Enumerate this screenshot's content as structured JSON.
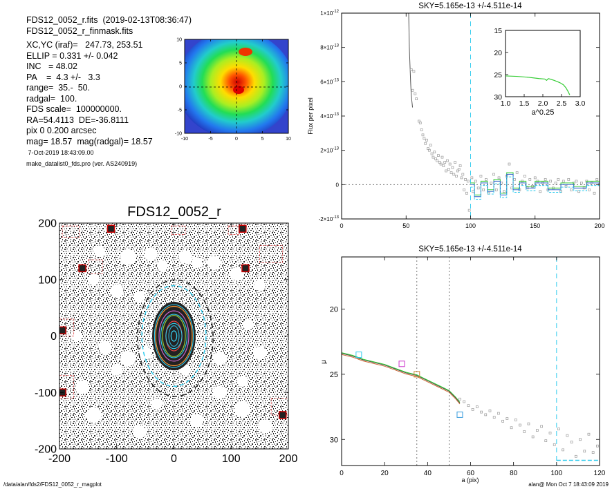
{
  "header": {
    "line1": "FDS12_0052_r.fits  (2019-02-13T08:36:47)",
    "line2": "FDS12_0052_r_finmask.fits",
    "xcyc": "XC,YC (iraf)=   247.73, 253.51",
    "ellip": "ELLIP = 0.331 +/- 0.042",
    "inc": "INC   = 48.02",
    "pa": "PA    =  4.3 +/-   3.3",
    "range": "range=  35.-  50.",
    "radgal": "radgal=  100.",
    "fds_scale": "FDS scale=  100000000.",
    "radec": "RA=54.4113  DE=-36.8111",
    "pix": "pix 0 0.200 arcsec",
    "mag": "mag= 18.57  mag(radgal)= 18.57",
    "date": " 7-Oct-2019 18:43:09.00",
    "program": "make_datalist0_fds.pro (ver. AS240919)"
  },
  "footer": {
    "path": "/data/alan/fds2/FDS12_0052_r_magplot",
    "stamp": "alan@  Mon Oct  7 18:43:09 2019"
  },
  "colors": {
    "axis": "#000000",
    "cyan": "#33ccee",
    "green": "#33cc33",
    "points": "#999999",
    "mask": "#dd3333"
  },
  "chart_data": [
    {
      "id": "thumbnail",
      "type": "heatmap",
      "xlim": [
        -10,
        10
      ],
      "ylim": [
        -10,
        10
      ],
      "xticks": [
        "-10",
        "-5",
        "0",
        "5",
        "10"
      ],
      "yticks": [
        "10",
        "5",
        "0",
        "-5",
        "-10"
      ],
      "colormap": "rainbow"
    },
    {
      "id": "image",
      "type": "scatter",
      "title": "FDS12_0052_r",
      "xlim": [
        -200,
        200
      ],
      "ylim": [
        -200,
        200
      ],
      "xticks": [
        "-200",
        "-100",
        "0",
        "100",
        "200"
      ],
      "yticks": [
        "200",
        "100",
        "0",
        "-100",
        "-200"
      ],
      "ellipse_semi_axes": [
        [
          14,
          22
        ],
        [
          23,
          38
        ],
        [
          34,
          55
        ],
        [
          56,
          88
        ]
      ]
    },
    {
      "id": "sky",
      "type": "scatter",
      "title": "SKY=5.165e-13 +/-4.511e-14",
      "xlabel": "",
      "ylabel": "Flux per pixel",
      "xlim": [
        0,
        200
      ],
      "ylim": [
        -2e-13,
        1e-12
      ],
      "xticks": [
        "0",
        "50",
        "100",
        "150",
        "200"
      ],
      "yticks": [
        {
          "v": 1e-12,
          "m": "1",
          "e": "-12"
        },
        {
          "v": 8e-13,
          "m": "8",
          "e": "-13"
        },
        {
          "v": 6e-13,
          "m": "6",
          "e": "-13"
        },
        {
          "v": 4e-13,
          "m": "4",
          "e": "-13"
        },
        {
          "v": 2e-13,
          "m": "2",
          "e": "-13"
        },
        {
          "v": 0,
          "m": "0",
          "e": ""
        },
        {
          "v": -2e-13,
          "m": "-2",
          "e": "-13"
        }
      ],
      "times": "×10",
      "limit_x": 100,
      "profile": [
        [
          52,
          1e-12
        ],
        [
          52.5,
          8e-13
        ],
        [
          53,
          7e-13
        ],
        [
          53.5,
          6e-13
        ],
        [
          54,
          5.2e-13
        ],
        [
          55,
          4.5e-13
        ]
      ],
      "points": [
        [
          54,
          6.7e-13
        ],
        [
          56,
          6.6e-13
        ],
        [
          55,
          5.5e-13
        ],
        [
          57,
          5.3e-13
        ],
        [
          58,
          5e-13
        ],
        [
          60,
          3.7e-13
        ],
        [
          61,
          3.6e-13
        ],
        [
          62,
          3.2e-13
        ],
        [
          63,
          2.9e-13
        ],
        [
          64,
          2.7e-13
        ],
        [
          65,
          2.4e-13
        ],
        [
          66,
          2.6e-13
        ],
        [
          67,
          2.1e-13
        ],
        [
          68,
          2e-13
        ],
        [
          69,
          2.3e-13
        ],
        [
          70,
          1.8e-13
        ],
        [
          71,
          1.6e-13
        ],
        [
          72,
          1.9e-13
        ],
        [
          73,
          1.5e-13
        ],
        [
          74,
          1.4e-13
        ],
        [
          75,
          1.7e-13
        ],
        [
          76,
          1.3e-13
        ],
        [
          77,
          1.2e-13
        ],
        [
          78,
          1.6e-13
        ],
        [
          79,
          1.1e-13
        ],
        [
          80,
          1.3e-13
        ],
        [
          81,
          8e-14
        ],
        [
          82,
          1.4e-13
        ],
        [
          83,
          9e-14
        ],
        [
          84,
          1.2e-13
        ],
        [
          85,
          7e-14
        ],
        [
          86,
          1e-13
        ],
        [
          87,
          6e-14
        ],
        [
          88,
          1.3e-13
        ],
        [
          89,
          5e-14
        ],
        [
          90,
          8e-14
        ],
        [
          91,
          9e-14
        ],
        [
          92,
          1.1e-13
        ],
        [
          93,
          4e-14
        ],
        [
          94,
          6e-14
        ],
        [
          95,
          -3e-14
        ],
        [
          96,
          3e-14
        ],
        [
          97,
          -5e-14
        ],
        [
          98,
          2e-14
        ],
        [
          99,
          -1.5e-13
        ],
        [
          101,
          4e-14
        ],
        [
          102,
          -4e-14
        ],
        [
          104,
          2e-14
        ],
        [
          106,
          -2e-14
        ],
        [
          108,
          5e-14
        ],
        [
          110,
          -3e-14
        ],
        [
          112,
          3e-14
        ],
        [
          114,
          -5e-14
        ],
        [
          116,
          1e-14
        ],
        [
          118,
          6e-14
        ],
        [
          120,
          -3e-14
        ],
        [
          122,
          4e-14
        ],
        [
          124,
          1e-14
        ],
        [
          126,
          -4e-14
        ],
        [
          128,
          5e-14
        ],
        [
          130,
          1.2e-13
        ],
        [
          132,
          -2e-14
        ],
        [
          134,
          3e-14
        ],
        [
          136,
          7e-14
        ],
        [
          138,
          -3e-14
        ],
        [
          140,
          2e-14
        ],
        [
          142,
          5e-14
        ],
        [
          144,
          -2e-14
        ],
        [
          146,
          3e-14
        ],
        [
          148,
          -1e-14
        ],
        [
          150,
          4e-14
        ],
        [
          152,
          2e-14
        ],
        [
          154,
          -4e-14
        ],
        [
          156,
          1e-14
        ],
        [
          158,
          3e-14
        ],
        [
          160,
          -3e-14
        ],
        [
          162,
          2e-14
        ],
        [
          164,
          -2e-14
        ],
        [
          166,
          1e-14
        ],
        [
          168,
          3e-14
        ],
        [
          170,
          -4e-14
        ],
        [
          172,
          2e-14
        ],
        [
          174,
          -1e-14
        ],
        [
          176,
          3e-14
        ],
        [
          178,
          -3e-14
        ],
        [
          180,
          1e-14
        ],
        [
          182,
          2e-14
        ],
        [
          184,
          -4e-14
        ],
        [
          186,
          1e-14
        ],
        [
          188,
          -2e-14
        ],
        [
          190,
          2e-14
        ],
        [
          192,
          -3e-14
        ],
        [
          194,
          1e-14
        ],
        [
          196,
          -5e-14
        ],
        [
          198,
          3e-14
        ],
        [
          200,
          0.0
        ]
      ],
      "steps": [
        [
          100,
          0
        ],
        [
          103,
          -7e-14
        ],
        [
          108,
          1e-14
        ],
        [
          113,
          -4e-14
        ],
        [
          118,
          2e-14
        ],
        [
          123,
          -6e-14
        ],
        [
          128,
          6e-14
        ],
        [
          133,
          -3e-14
        ],
        [
          138,
          1e-14
        ],
        [
          143,
          -2e-14
        ],
        [
          150,
          1e-14
        ],
        [
          160,
          -3e-14
        ],
        [
          170,
          0.0
        ],
        [
          180,
          -2e-14
        ],
        [
          190,
          1e-14
        ],
        [
          200,
          0.0
        ]
      ],
      "inset": {
        "xlabel": "a^0.25",
        "xlim": [
          1.0,
          3.0
        ],
        "ylim": [
          15,
          30
        ],
        "xticks": [
          "1.0",
          "1.5",
          "2.0",
          "2.5",
          "3.0"
        ],
        "yticks": [
          "15",
          "20",
          "25",
          "30"
        ],
        "curve": [
          [
            1.0,
            25.3
          ],
          [
            1.3,
            25.4
          ],
          [
            1.6,
            25.6
          ],
          [
            1.9,
            25.9
          ],
          [
            2.05,
            26.0
          ],
          [
            2.1,
            26.3
          ],
          [
            2.15,
            25.9
          ],
          [
            2.3,
            26.3
          ],
          [
            2.45,
            26.8
          ],
          [
            2.55,
            27.3
          ],
          [
            2.62,
            28.0
          ],
          [
            2.68,
            28.9
          ],
          [
            2.72,
            29.6
          ]
        ]
      }
    },
    {
      "id": "mu",
      "type": "line",
      "title": "SKY=5.165e-13 +/-4.511e-14",
      "xlabel": "a (pix)",
      "ylabel": "μ",
      "xlim": [
        0,
        120
      ],
      "ylim": [
        32,
        16
      ],
      "xticks": [
        "0",
        "20",
        "40",
        "60",
        "80",
        "100",
        "120"
      ],
      "yticks": [
        "20",
        "25",
        "30"
      ],
      "vlines": [
        35,
        50
      ],
      "limit_x": 100,
      "curve": [
        [
          0,
          23.4
        ],
        [
          5,
          23.6
        ],
        [
          10,
          23.9
        ],
        [
          15,
          24.1
        ],
        [
          20,
          24.3
        ],
        [
          25,
          24.6
        ],
        [
          30,
          24.9
        ],
        [
          35,
          25.1
        ],
        [
          40,
          25.5
        ],
        [
          45,
          25.9
        ],
        [
          50,
          26.3
        ],
        [
          53,
          26.8
        ],
        [
          55,
          27.2
        ]
      ],
      "points": [
        [
          55,
          26.9
        ],
        [
          57,
          27.1
        ],
        [
          59,
          27.4
        ],
        [
          61,
          27.7
        ],
        [
          63,
          27.5
        ],
        [
          65,
          27.9
        ],
        [
          67,
          28.1
        ],
        [
          69,
          27.8
        ],
        [
          71,
          28.3
        ],
        [
          73,
          28.0
        ],
        [
          75,
          28.6
        ],
        [
          77,
          28.4
        ],
        [
          79,
          29.1
        ],
        [
          81,
          28.5
        ],
        [
          83,
          28.9
        ],
        [
          85,
          29.4
        ],
        [
          87,
          28.8
        ],
        [
          89,
          29.8
        ],
        [
          91,
          29.3
        ],
        [
          93,
          29.0
        ],
        [
          95,
          30.1
        ],
        [
          97,
          29.5
        ],
        [
          99,
          30.4
        ],
        [
          101,
          29.2
        ],
        [
          103,
          30.8
        ],
        [
          105,
          29.7
        ],
        [
          107,
          30.2
        ],
        [
          109,
          31.3
        ],
        [
          111,
          30.0
        ],
        [
          113,
          30.9
        ],
        [
          115,
          29.6
        ],
        [
          117,
          31.0
        ],
        [
          119,
          30.5
        ]
      ],
      "markers": [
        {
          "x": 8,
          "y": 23.5,
          "color": "#33ccee"
        },
        {
          "x": 28,
          "y": 24.2,
          "color": "#cc33cc"
        },
        {
          "x": 35,
          "y": 25.0,
          "color": "#cc8833"
        },
        {
          "x": 55,
          "y": 28.1,
          "color": "#3399dd"
        }
      ]
    }
  ]
}
